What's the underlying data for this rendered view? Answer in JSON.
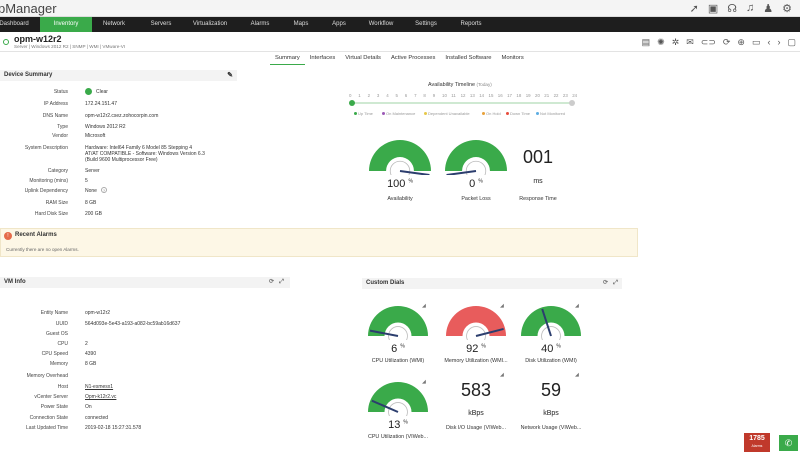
{
  "app": {
    "title": "pManager"
  },
  "nav": {
    "items": [
      "Dashboard",
      "Inventory",
      "Network",
      "Servers",
      "Virtualization",
      "Alarms",
      "Maps",
      "Apps",
      "Workflow",
      "Settings",
      "Reports"
    ],
    "active": "Inventory"
  },
  "device": {
    "name": "opm-w12r2",
    "subtitle": "Server | Windows 2012 R2 | SNMP | WMI | VMware-VI"
  },
  "tabs": {
    "items": [
      "Summary",
      "Interfaces",
      "Virtual Details",
      "Active Processes",
      "Installed Software",
      "Monitors"
    ],
    "active": "Summary"
  },
  "summary": {
    "title": "Device Summary",
    "rows": [
      {
        "label": "Status",
        "value": "Clear"
      },
      {
        "label": "IP Address",
        "value": "172.24.151.47"
      },
      {
        "label": "DNS Name",
        "value": "opm-w12r2.csez.zohocorpin.com"
      },
      {
        "label": "Type",
        "value": "Windows 2012 R2"
      },
      {
        "label": "Vendor",
        "value": "Microsoft"
      },
      {
        "label": "System Description",
        "value": "Hardware: Intel64 Family 6 Model 85 Stepping 4\nAT/AT COMPATIBLE - Software: Windows Version 6.3\n(Build 9600 Multiprocessor Free)"
      },
      {
        "label": "Category",
        "value": "Server"
      },
      {
        "label": "Monitoring (mins)",
        "value": "5"
      },
      {
        "label": "Uplink Dependency",
        "value": "None"
      },
      {
        "label": "RAM Size",
        "value": "8 GB"
      },
      {
        "label": "Hard Disk Size",
        "value": "200 GB"
      }
    ]
  },
  "timeline": {
    "title": "Availability Timeline",
    "today": "(Today)",
    "hours": [
      "0",
      "1",
      "2",
      "3",
      "4",
      "5",
      "6",
      "7",
      "8",
      "9",
      "10",
      "11",
      "12",
      "13",
      "14",
      "15",
      "16",
      "17",
      "18",
      "19",
      "20",
      "21",
      "22",
      "23",
      "24"
    ],
    "legend": [
      "Up Time",
      "On Maintenance",
      "Dependent Unavailable",
      "On Hold",
      "Down Time",
      "Not Monitored"
    ],
    "legend_colors": [
      "#3aaa4a",
      "#9b59b6",
      "#e6c84a",
      "#e8a13a",
      "#e74c3c",
      "#5dade2"
    ]
  },
  "gauges": [
    {
      "value": "100",
      "unit": "%",
      "label": "Availability",
      "level": 1.0,
      "color": "#3aaa4a"
    },
    {
      "value": "0",
      "unit": "%",
      "label": "Packet Loss",
      "level": 0.0,
      "color": "#3aaa4a"
    }
  ],
  "response": {
    "value": "001",
    "unit": "ms",
    "label": "Response Time"
  },
  "alarms": {
    "title": "Recent Alarms",
    "empty": "Currently there are no open Alarms."
  },
  "vm": {
    "title": "VM Info",
    "rows": [
      {
        "label": "Entity Name",
        "value": "opm-w12r2"
      },
      {
        "label": "UUID",
        "value": "564d093e-5e43-a193-a082-bc59ab16d637"
      },
      {
        "label": "Guest OS",
        "value": ""
      },
      {
        "label": "CPU",
        "value": "2"
      },
      {
        "label": "CPU Speed",
        "value": "4390"
      },
      {
        "label": "Memory",
        "value": "8 GB"
      },
      {
        "label": "Memory Overhead",
        "value": ""
      },
      {
        "label": "Host",
        "value": "N1-esmesx1"
      },
      {
        "label": "vCenter Server",
        "value": "Opm-k12r2.vc"
      },
      {
        "label": "Power State",
        "value": "On"
      },
      {
        "label": "Connection State",
        "value": "connected"
      },
      {
        "label": "Last Updated Time",
        "value": "2019-02-18 15:27:31.578"
      }
    ]
  },
  "dials": {
    "title": "Custom Dials",
    "items": [
      {
        "value": "6",
        "unit": "%",
        "label": "CPU Utilization (WMI)",
        "level": 0.06,
        "color": "#3aaa4a"
      },
      {
        "value": "92",
        "unit": "%",
        "label": "Memory Utilization (WMI...",
        "level": 0.92,
        "color": "#e85c5c"
      },
      {
        "value": "40",
        "unit": "%",
        "label": "Disk Utilization (WMI)",
        "level": 0.4,
        "color": "#3aaa4a"
      },
      {
        "value": "13",
        "unit": "%",
        "label": "CPU Utilization (VIWeb...",
        "level": 0.13,
        "color": "#3aaa4a"
      }
    ],
    "numbers": [
      {
        "value": "583",
        "unit": "kBps",
        "label": "Disk I/O Usage (VIWeb..."
      },
      {
        "value": "59",
        "unit": "kBps",
        "label": "Network Usage (VIWeb..."
      }
    ]
  },
  "badge": {
    "count": "1785",
    "label": "Alarms"
  }
}
